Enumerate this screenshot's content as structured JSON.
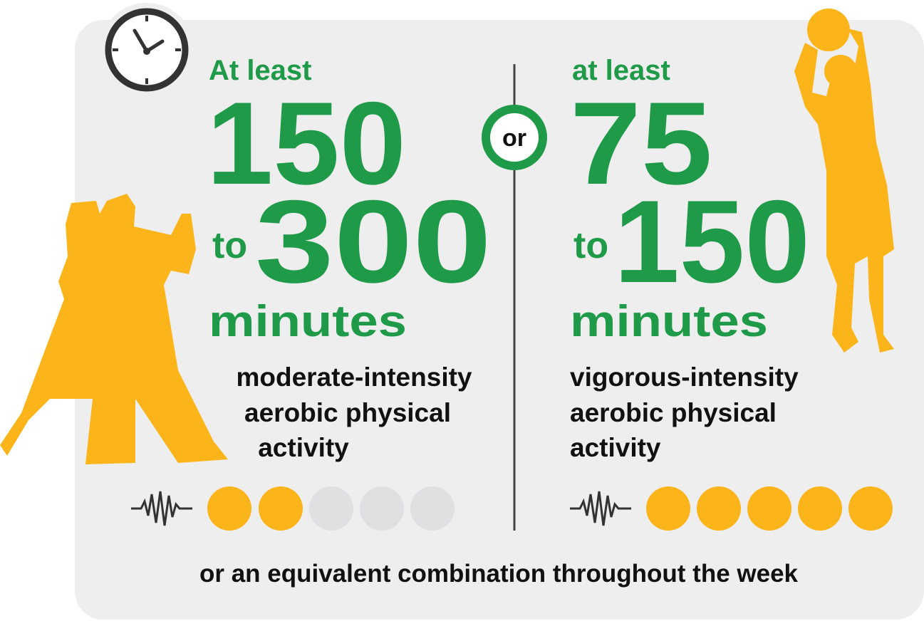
{
  "left": {
    "lead": "At least",
    "number": 150,
    "connector": "to",
    "upper": 300,
    "unit": "minutes",
    "description": [
      "moderate-intensity",
      "aerobic physical",
      "activity"
    ]
  },
  "divider": "or",
  "right": {
    "lead": "at least",
    "number": 75,
    "connector": "to",
    "upper": 150,
    "unit": "minutes",
    "description": [
      "vigorous-intensity",
      "aerobic physical",
      "activity"
    ]
  },
  "footer": "or an equivalent combination throughout the week"
}
